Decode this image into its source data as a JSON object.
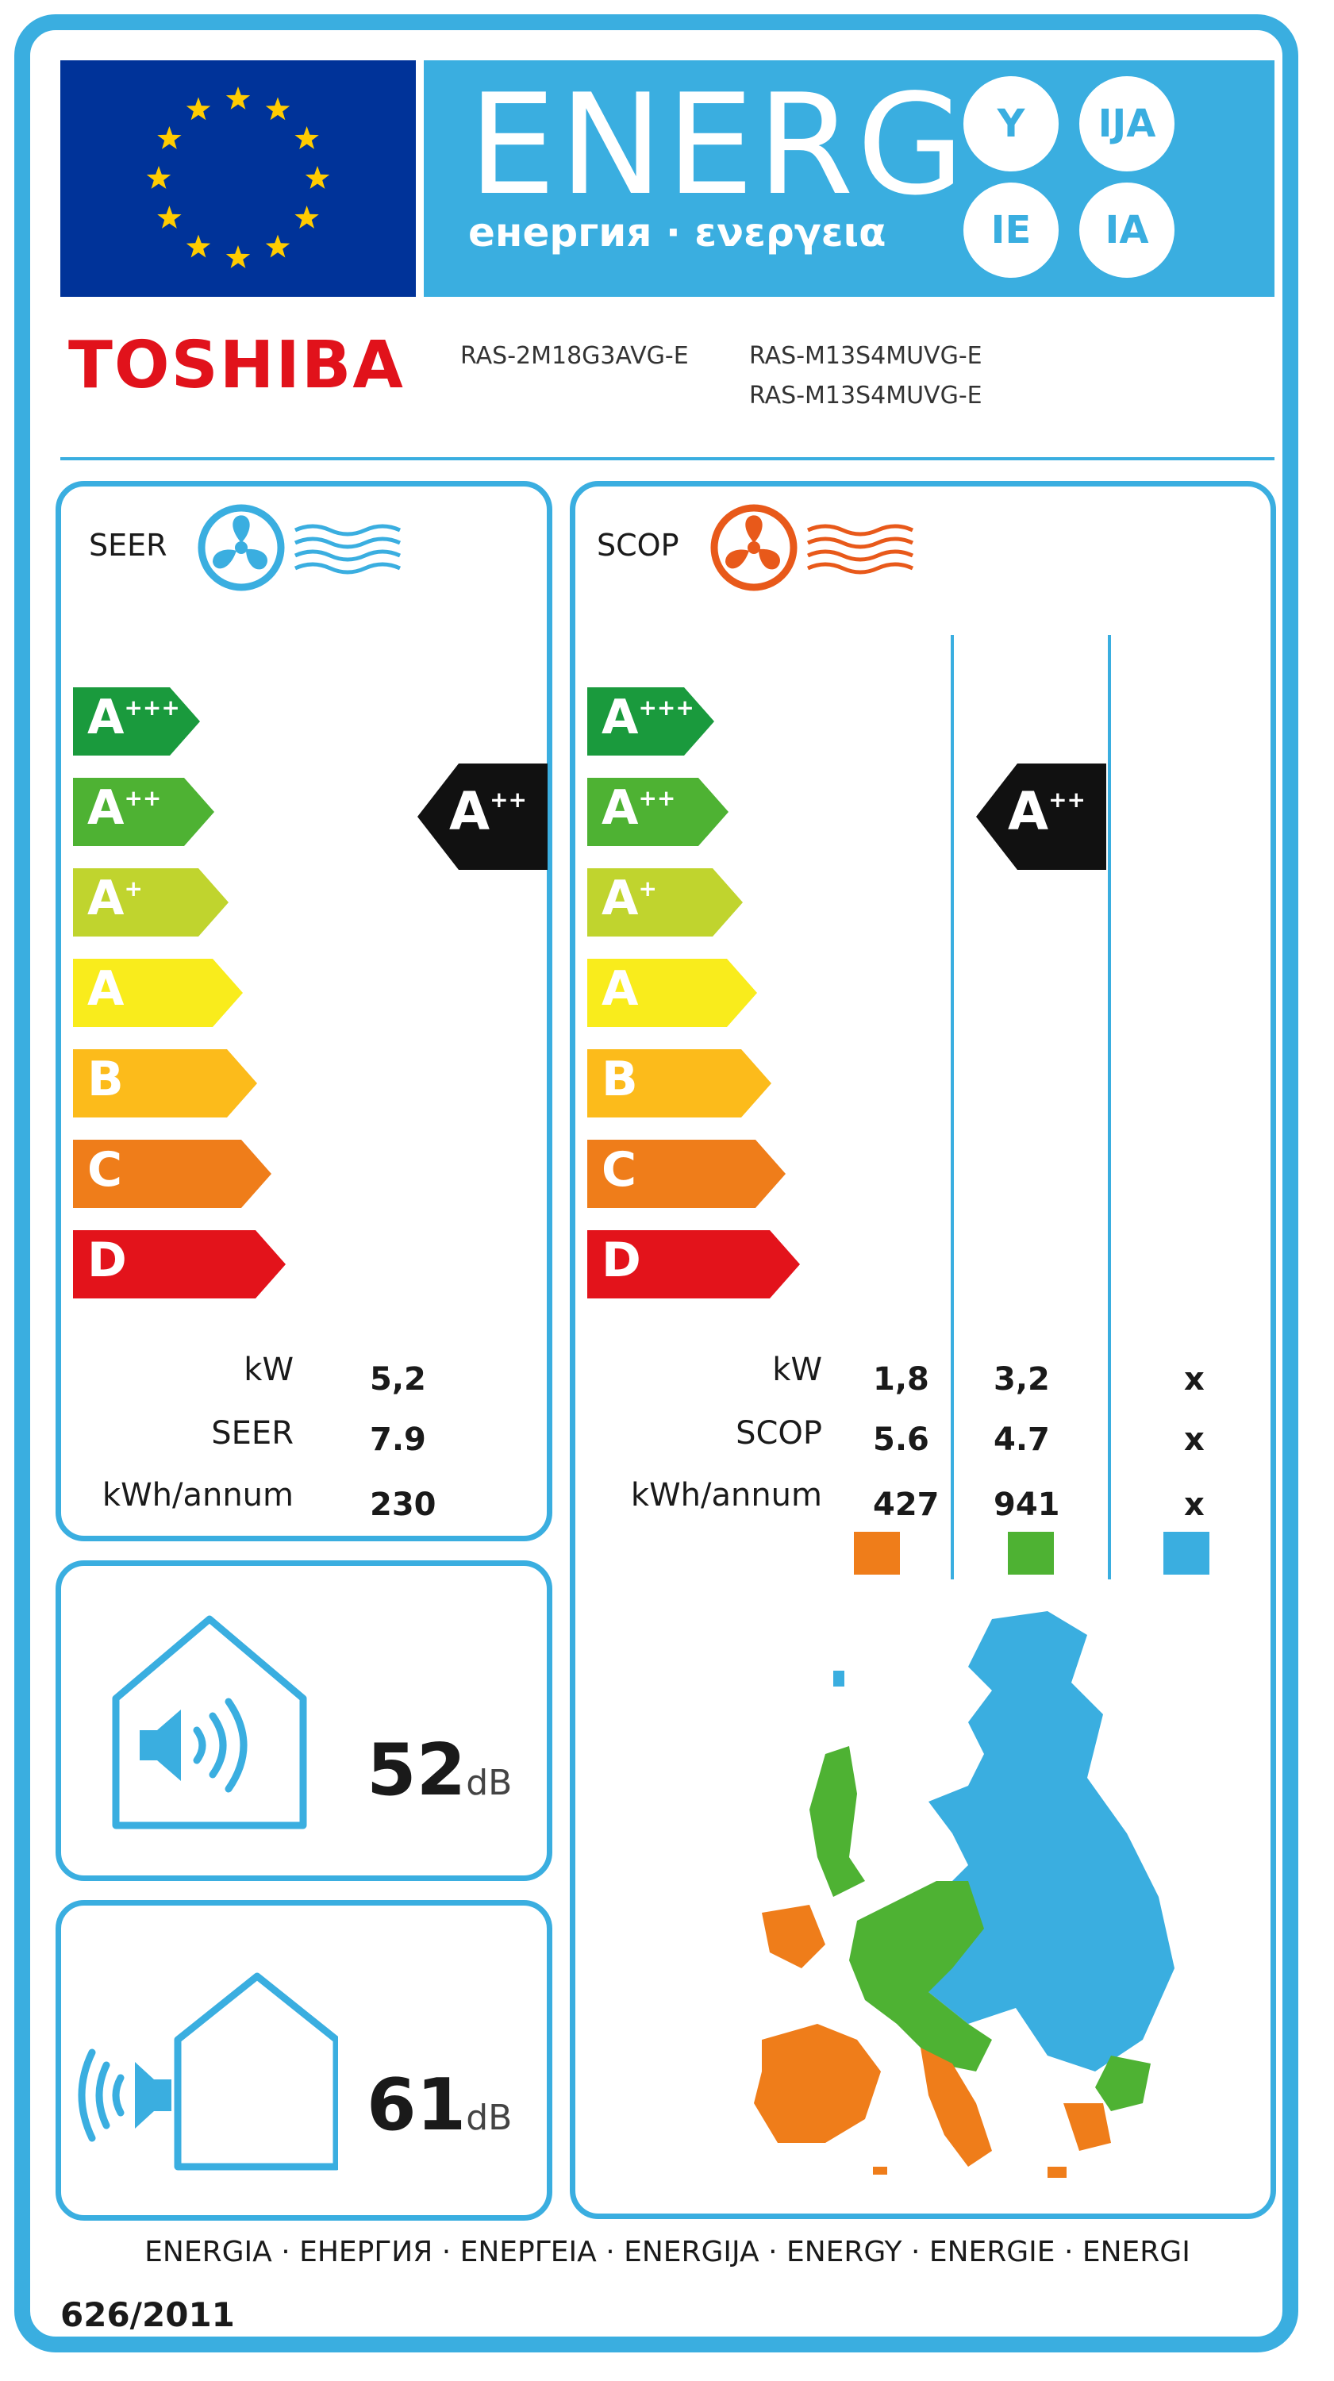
{
  "header": {
    "energy_word": "ENERG",
    "energy_subtitle": "енергия · ενεργεια",
    "language_suffixes": [
      "Y",
      "IJA",
      "IE",
      "IA"
    ]
  },
  "brand": "TOSHIBA",
  "models": {
    "outdoor": "RAS-2M18G3AVG-E",
    "indoor": [
      "RAS-M13S4MUVG-E",
      "RAS-M13S4MUVG-E"
    ]
  },
  "class_scale": [
    {
      "letter": "A",
      "sup": "+++",
      "color": "#1a9a3d"
    },
    {
      "letter": "A",
      "sup": "++",
      "color": "#4eb233"
    },
    {
      "letter": "A",
      "sup": "+",
      "color": "#c0d42e"
    },
    {
      "letter": "A",
      "sup": "",
      "color": "#f9ec1c"
    },
    {
      "letter": "B",
      "sup": "",
      "color": "#fcbb1b"
    },
    {
      "letter": "C",
      "sup": "",
      "color": "#ef7d1a"
    },
    {
      "letter": "D",
      "sup": "",
      "color": "#e3131b"
    }
  ],
  "seer": {
    "title": "SEER",
    "rating": {
      "letter": "A",
      "sup": "++"
    },
    "rows": [
      {
        "label": "kW",
        "value": "5,2"
      },
      {
        "label": "SEER",
        "value": "7.9"
      },
      {
        "label": "kWh/annum",
        "value": "230"
      }
    ]
  },
  "scop": {
    "title": "SCOP",
    "rating": {
      "letter": "A",
      "sup": "++"
    },
    "rows": [
      {
        "label": "kW",
        "values": [
          "1,8",
          "3,2",
          "x"
        ]
      },
      {
        "label": "SCOP",
        "values": [
          "5.6",
          "4.7",
          "x"
        ]
      },
      {
        "label": "kWh/annum",
        "values": [
          "427",
          "941",
          "x"
        ]
      }
    ],
    "zone_colors": [
      "#ef7d1a",
      "#4eb233",
      "#3aaee0"
    ]
  },
  "noise": {
    "indoor": {
      "value": "52",
      "unit": "dB"
    },
    "outdoor": {
      "value": "61",
      "unit": "dB"
    }
  },
  "footer": {
    "languages": "ENERGIA · ЕНЕРГИЯ · ΕΝΕΡΓΕΙΑ · ENERGIJA · ENERGY · ENERGIE · ENERGI",
    "regulation": "626/2011"
  },
  "colors": {
    "frame": "#3aaee0",
    "eu_blue": "#003399",
    "eu_star": "#ffcc00",
    "brand_red": "#e1121b",
    "cooling_icon": "#3aaee0",
    "heating_icon": "#e8591a",
    "rating_arrow": "#111111"
  }
}
